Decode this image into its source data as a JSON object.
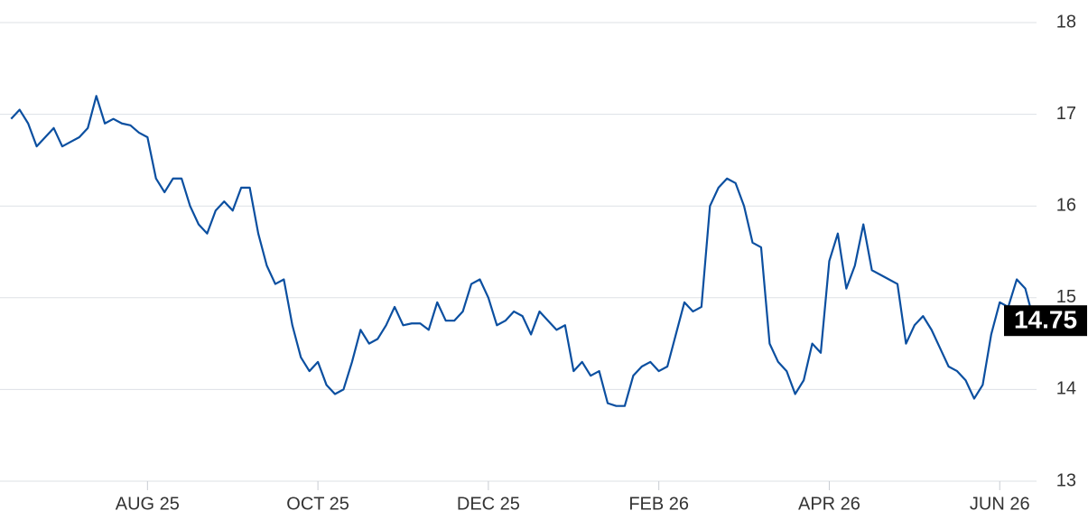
{
  "chart_data": {
    "type": "line",
    "categories": [
      null,
      null,
      null,
      null,
      null,
      null,
      null,
      null,
      null,
      null,
      null,
      null,
      null,
      null,
      null,
      null,
      "AUG 25",
      null,
      null,
      null,
      null,
      null,
      null,
      null,
      null,
      null,
      null,
      null,
      null,
      null,
      null,
      null,
      null,
      null,
      null,
      null,
      "OCT 25",
      null,
      null,
      null,
      null,
      null,
      null,
      null,
      null,
      null,
      null,
      null,
      null,
      null,
      null,
      null,
      null,
      null,
      null,
      null,
      "DEC 25",
      null,
      null,
      null,
      null,
      null,
      null,
      null,
      null,
      null,
      null,
      null,
      null,
      null,
      null,
      null,
      null,
      null,
      null,
      null,
      "FEB 26",
      null,
      null,
      null,
      null,
      null,
      null,
      null,
      null,
      null,
      null,
      null,
      null,
      null,
      null,
      null,
      null,
      null,
      null,
      null,
      "APR 26",
      null,
      null,
      null,
      null,
      null,
      null,
      null,
      null,
      null,
      null,
      null,
      null,
      null,
      null,
      null,
      null,
      null,
      null,
      null,
      "JUN 26",
      null,
      null,
      null,
      null
    ],
    "values": [
      16.95,
      17.05,
      16.9,
      16.65,
      16.75,
      16.85,
      16.65,
      16.7,
      16.75,
      16.85,
      17.2,
      16.9,
      16.95,
      16.9,
      16.88,
      16.8,
      16.75,
      16.3,
      16.15,
      16.3,
      16.3,
      16.0,
      15.8,
      15.7,
      15.95,
      16.05,
      15.95,
      16.2,
      16.2,
      15.7,
      15.35,
      15.15,
      15.2,
      14.7,
      14.35,
      14.2,
      14.3,
      14.05,
      13.95,
      14.0,
      14.3,
      14.65,
      14.5,
      14.55,
      14.7,
      14.9,
      14.7,
      14.72,
      14.72,
      14.65,
      14.95,
      14.75,
      14.75,
      14.85,
      15.15,
      15.2,
      15.0,
      14.7,
      14.75,
      14.85,
      14.8,
      14.6,
      14.85,
      14.75,
      14.65,
      14.7,
      14.2,
      14.3,
      14.15,
      14.2,
      13.85,
      13.82,
      13.82,
      14.15,
      14.25,
      14.3,
      14.2,
      14.25,
      14.6,
      14.95,
      14.85,
      14.9,
      16.0,
      16.2,
      16.3,
      16.25,
      16.0,
      15.6,
      15.55,
      14.5,
      14.3,
      14.2,
      13.95,
      14.1,
      14.5,
      14.4,
      15.4,
      15.7,
      15.1,
      15.35,
      15.8,
      15.3,
      15.25,
      15.2,
      15.15,
      14.5,
      14.7,
      14.8,
      14.65,
      14.45,
      14.25,
      14.2,
      14.1,
      13.9,
      14.05,
      14.6,
      14.95,
      14.9,
      15.2,
      15.1,
      14.75
    ],
    "color": "#0b4fa0",
    "ylim": [
      13,
      18
    ],
    "yticks": [
      13,
      14,
      15,
      16,
      17,
      18
    ],
    "grid": true
  }
}
